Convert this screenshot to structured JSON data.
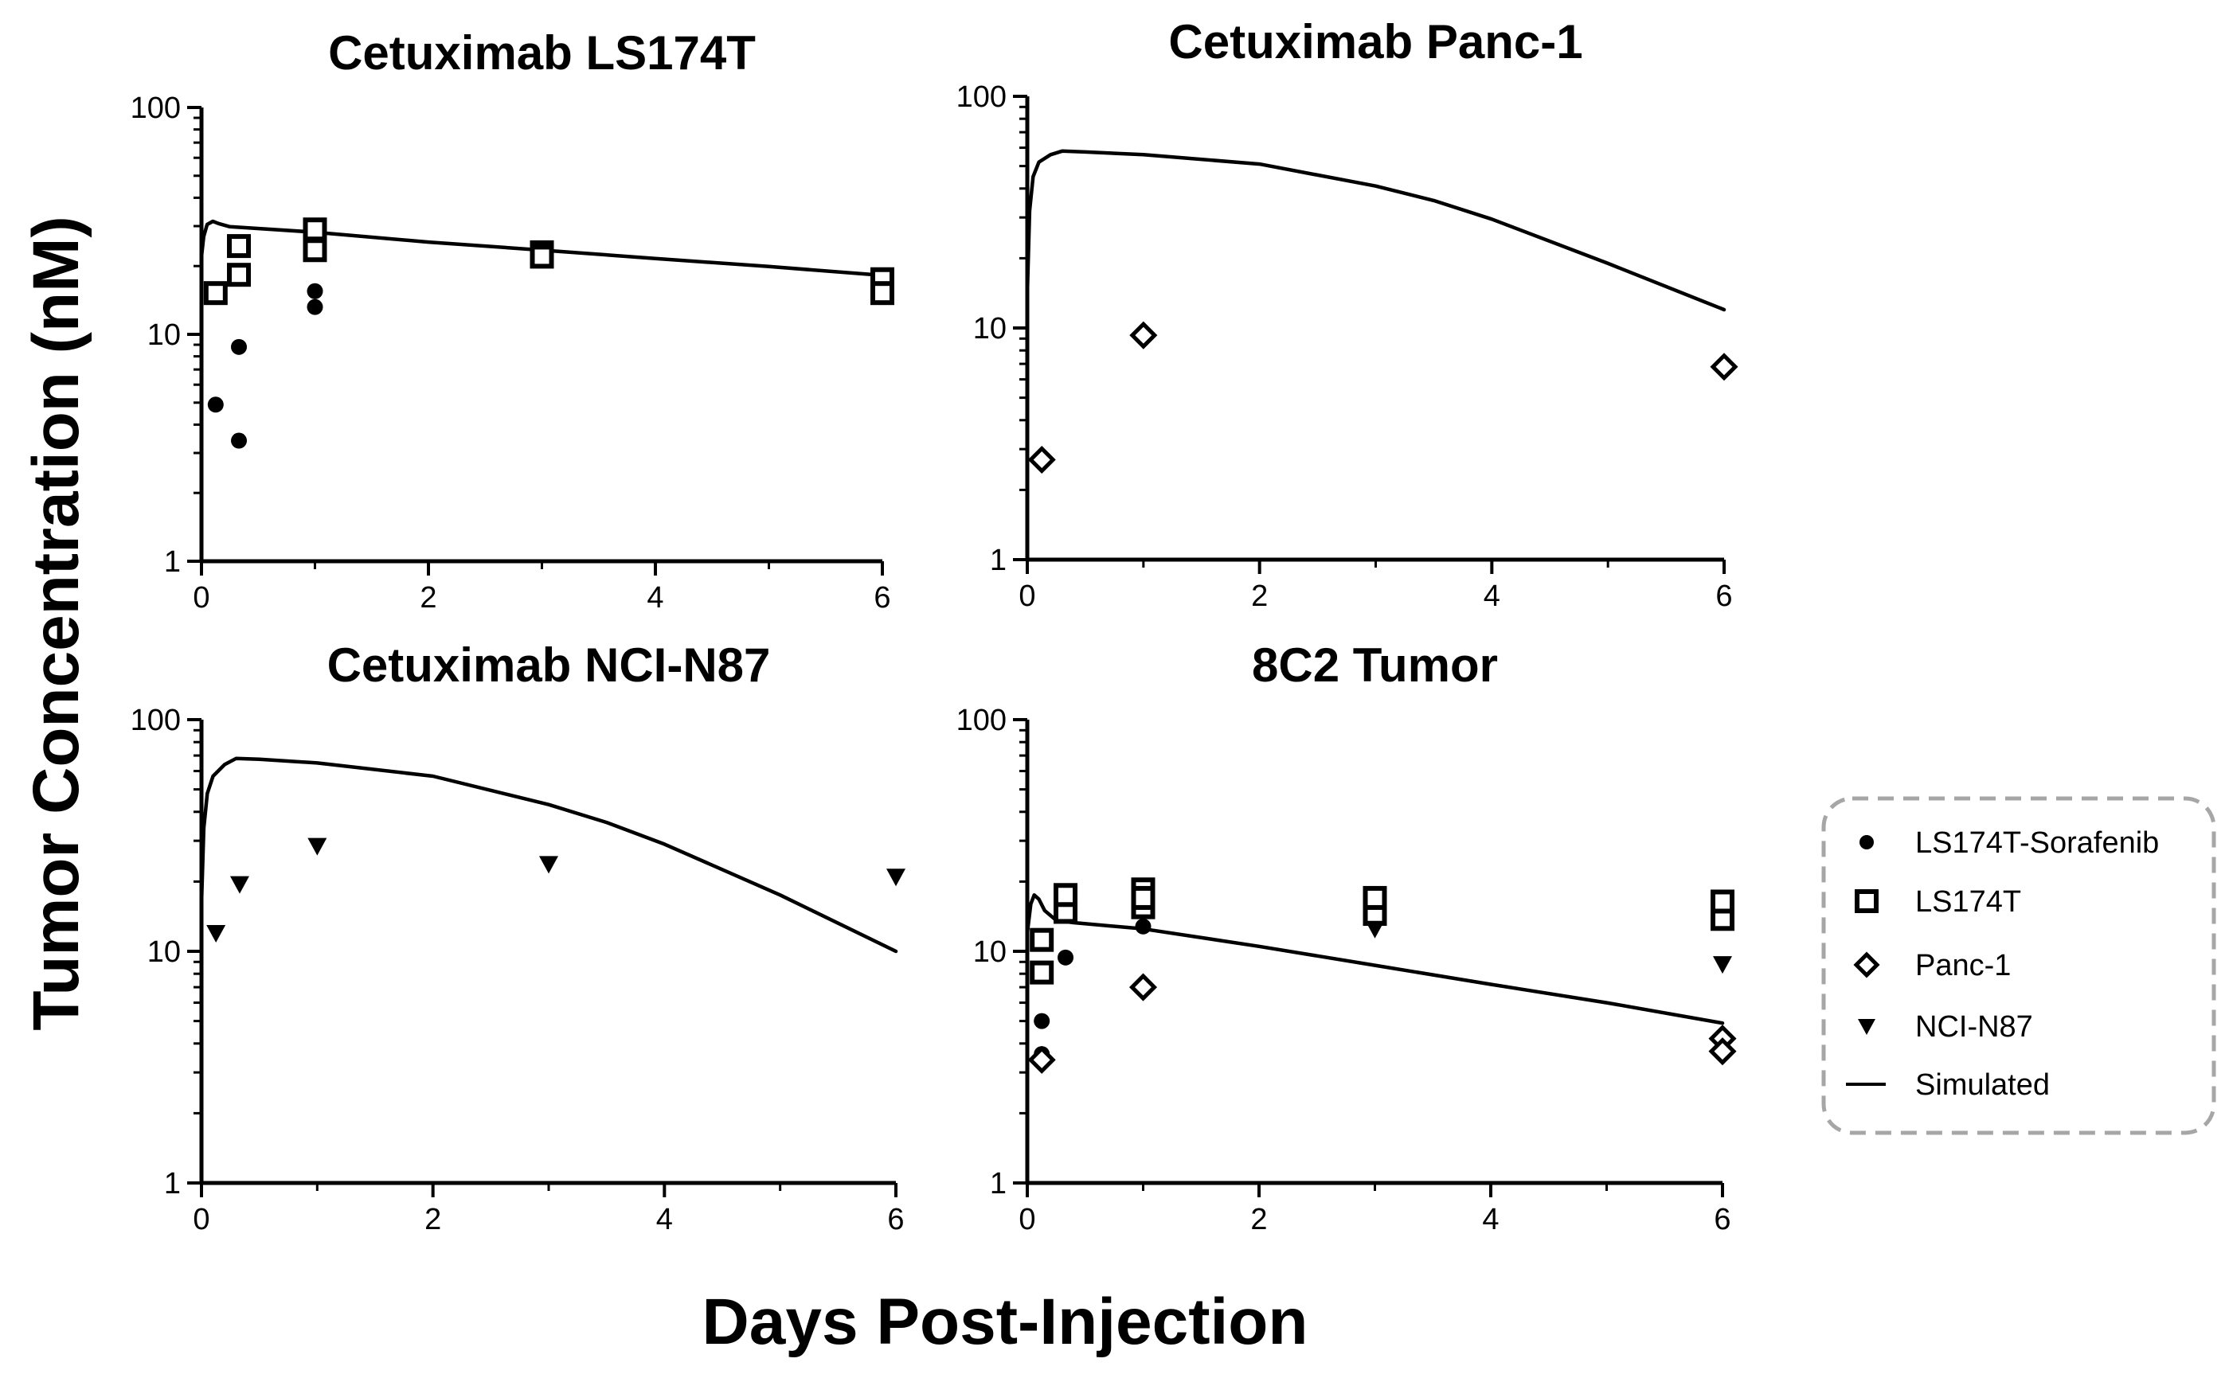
{
  "figure": {
    "ylabel": "Tumor Concentration (nM)",
    "xlabel": "Days Post-Injection"
  },
  "legend": {
    "placement": "right, beside bottom-right panel",
    "entries": [
      {
        "marker": "circle-filled",
        "label": "LS174T-Sorafenib"
      },
      {
        "marker": "square-open",
        "label": "LS174T"
      },
      {
        "marker": "diamond-open",
        "label": "Panc-1"
      },
      {
        "marker": "triangle-down-filled",
        "label": "NCI-N87"
      },
      {
        "marker": "line",
        "label": "Simulated"
      }
    ]
  },
  "chart_data": [
    {
      "type": "scatter",
      "title": "Cetuximab LS174T",
      "xlabel": "",
      "ylabel": "",
      "xlim": [
        0,
        6
      ],
      "ylim": [
        1,
        100
      ],
      "yscale": "log",
      "xticks": [
        0,
        2,
        4,
        6
      ],
      "yticks": [
        1,
        10,
        100
      ],
      "grid": false,
      "series": [
        {
          "name": "LS174T-Sorafenib",
          "marker": "circle-filled",
          "x": [
            0.125,
            0.33,
            0.33,
            1,
            1
          ],
          "y": [
            4.9,
            8.8,
            3.4,
            15.5,
            13.2
          ]
        },
        {
          "name": "LS174T",
          "marker": "square-open",
          "x": [
            0.125,
            0.33,
            0.33,
            1,
            1,
            3,
            3,
            6,
            6
          ],
          "y": [
            15.2,
            18.3,
            24.5,
            29,
            23.5,
            23,
            22,
            17.5,
            15.2
          ]
        },
        {
          "name": "Simulated",
          "marker": "line",
          "x": [
            0,
            0.02,
            0.05,
            0.1,
            0.15,
            0.25,
            0.4,
            1,
            2,
            3,
            4,
            5,
            6
          ],
          "y": [
            22,
            27,
            30.5,
            31.5,
            30.8,
            29.8,
            29.5,
            28.2,
            25.5,
            23.5,
            21.6,
            19.9,
            18.2
          ]
        }
      ]
    },
    {
      "type": "scatter",
      "title": "Cetuximab Panc-1",
      "xlabel": "",
      "ylabel": "",
      "xlim": [
        0,
        6
      ],
      "ylim": [
        1,
        100
      ],
      "yscale": "log",
      "xticks": [
        0,
        2,
        4,
        6
      ],
      "yticks": [
        1,
        10,
        100
      ],
      "grid": false,
      "series": [
        {
          "name": "Panc-1",
          "marker": "diamond-open",
          "x": [
            0.125,
            1,
            6
          ],
          "y": [
            2.7,
            9.3,
            6.8
          ]
        },
        {
          "name": "Simulated",
          "marker": "line",
          "x": [
            0,
            0.02,
            0.05,
            0.1,
            0.2,
            0.3,
            0.5,
            1,
            2,
            3,
            3.5,
            4,
            5,
            6
          ],
          "y": [
            14,
            32,
            45,
            52,
            56,
            58,
            57.5,
            56,
            51,
            41,
            35.5,
            29.5,
            19,
            12
          ]
        }
      ]
    },
    {
      "type": "scatter",
      "title": "Cetuximab NCI-N87",
      "xlabel": "",
      "ylabel": "",
      "xlim": [
        0,
        6
      ],
      "ylim": [
        1,
        100
      ],
      "yscale": "log",
      "xticks": [
        0,
        2,
        4,
        6
      ],
      "yticks": [
        1,
        10,
        100
      ],
      "grid": false,
      "series": [
        {
          "name": "NCI-N87",
          "marker": "triangle-down-filled",
          "x": [
            0.125,
            0.33,
            1,
            3,
            6
          ],
          "y": [
            12,
            19.5,
            28.5,
            23.8,
            21
          ]
        },
        {
          "name": "Simulated",
          "marker": "line",
          "x": [
            0,
            0.02,
            0.05,
            0.1,
            0.2,
            0.3,
            0.5,
            1,
            2,
            3,
            3.5,
            4,
            5,
            6
          ],
          "y": [
            16,
            34,
            48,
            57,
            64,
            68,
            67.5,
            65,
            57,
            43,
            36,
            29,
            17.5,
            10
          ]
        }
      ]
    },
    {
      "type": "scatter",
      "title": "8C2 Tumor",
      "xlabel": "",
      "ylabel": "",
      "xlim": [
        0,
        6
      ],
      "ylim": [
        1,
        100
      ],
      "yscale": "log",
      "xticks": [
        0,
        2,
        4,
        6
      ],
      "yticks": [
        1,
        10,
        100
      ],
      "grid": false,
      "series": [
        {
          "name": "LS174T-Sorafenib",
          "marker": "circle-filled",
          "x": [
            0.125,
            0.125,
            0.33,
            1
          ],
          "y": [
            5,
            3.6,
            9.4,
            12.8
          ]
        },
        {
          "name": "LS174T",
          "marker": "square-open",
          "x": [
            0.125,
            0.125,
            0.33,
            0.33,
            1,
            1,
            1,
            3,
            3,
            6,
            6
          ],
          "y": [
            8.1,
            11.2,
            14.8,
            17.5,
            15.5,
            18.5,
            17,
            14.5,
            17,
            13.8,
            16.4
          ]
        },
        {
          "name": "Panc-1",
          "marker": "diamond-open",
          "x": [
            0.125,
            1,
            6,
            6
          ],
          "y": [
            3.4,
            7,
            4.2,
            3.7
          ]
        },
        {
          "name": "NCI-N87",
          "marker": "triangle-down-filled",
          "x": [
            3,
            6
          ],
          "y": [
            12.5,
            8.8
          ]
        },
        {
          "name": "Simulated",
          "marker": "line",
          "x": [
            0,
            0.03,
            0.06,
            0.1,
            0.15,
            0.25,
            0.4,
            1,
            2,
            3,
            4,
            5,
            6
          ],
          "y": [
            12,
            16,
            17.5,
            16.8,
            15,
            13.6,
            13.3,
            12.5,
            10.5,
            8.7,
            7.2,
            6,
            4.9
          ]
        }
      ]
    }
  ]
}
